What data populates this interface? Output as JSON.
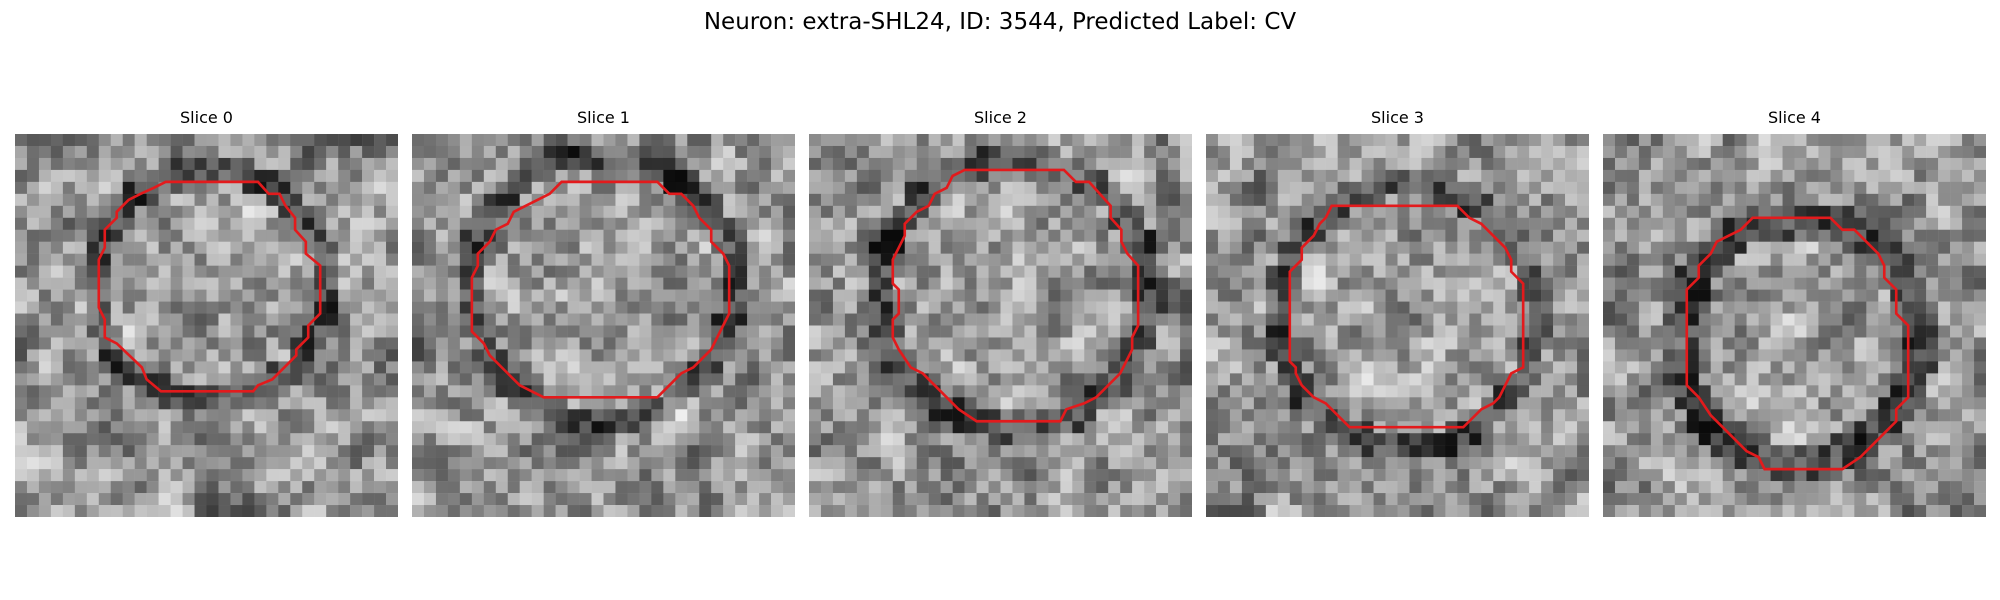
{
  "figure": {
    "title": "Neuron: extra-SHL24, ID: 3544, Predicted Label: CV",
    "colors": {
      "contour": "#e31a1c",
      "colormap": "gray"
    },
    "panels": [
      {
        "label": "Slice 0"
      },
      {
        "label": "Slice 1"
      },
      {
        "label": "Slice 2"
      },
      {
        "label": "Slice 3"
      },
      {
        "label": "Slice 4"
      }
    ]
  }
}
